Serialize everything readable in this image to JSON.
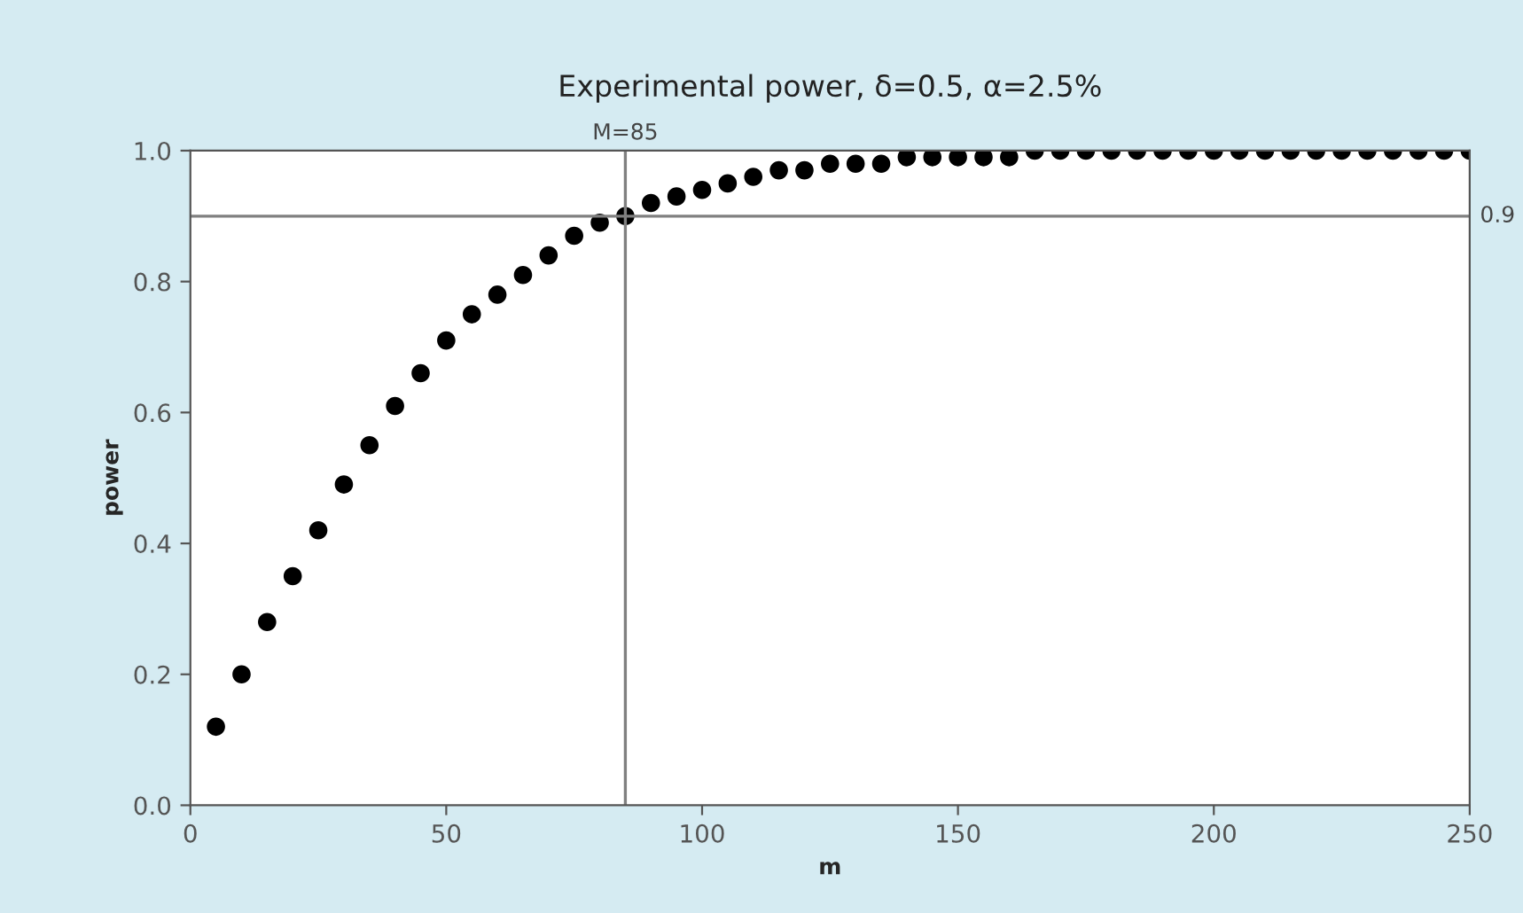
{
  "chart_data": {
    "type": "scatter",
    "title": "Experimental power, δ=0.5, α=2.5%",
    "xlabel": "m",
    "ylabel": "power",
    "x": [
      5,
      10,
      15,
      20,
      25,
      30,
      35,
      40,
      45,
      50,
      55,
      60,
      65,
      70,
      75,
      80,
      85,
      90,
      95,
      100,
      105,
      110,
      115,
      120,
      125,
      130,
      135,
      140,
      145,
      150,
      155,
      160,
      165,
      170,
      175,
      180,
      185,
      190,
      195,
      200,
      205,
      210,
      215,
      220,
      225,
      230,
      235,
      240,
      245,
      250
    ],
    "series": [
      {
        "color": "#000000",
        "values": [
          0.12,
          0.2,
          0.28,
          0.35,
          0.42,
          0.49,
          0.55,
          0.61,
          0.66,
          0.71,
          0.75,
          0.78,
          0.81,
          0.84,
          0.87,
          0.89,
          0.9,
          0.92,
          0.93,
          0.94,
          0.95,
          0.96,
          0.97,
          0.97,
          0.98,
          0.98,
          0.98,
          0.99,
          0.99,
          0.99,
          0.99,
          0.99,
          1.0,
          1.0,
          1.0,
          1.0,
          1.0,
          1.0,
          1.0,
          1.0,
          1.0,
          1.0,
          1.0,
          1.0,
          1.0,
          1.0,
          1.0,
          1.0,
          1.0,
          1.0
        ]
      }
    ],
    "marker": "circle",
    "grid": false,
    "xlim": [
      0,
      250
    ],
    "xticks": [
      0,
      50,
      100,
      150,
      200,
      250
    ],
    "ylim": [
      0,
      1
    ],
    "yticks": [
      {
        "value": 0,
        "label": "0.0"
      },
      {
        "value": 0.2,
        "label": "0.2"
      },
      {
        "value": 0.4,
        "label": "0.4"
      },
      {
        "value": 0.6,
        "label": "0.6"
      },
      {
        "value": 0.8,
        "label": "0.8"
      },
      {
        "value": 1,
        "label": "1.0"
      }
    ],
    "ref_lines": [
      {
        "axis": "x",
        "value": 85,
        "label": "M=85",
        "color": "#808080"
      },
      {
        "axis": "y",
        "value": 0.9,
        "label": "0.9",
        "color": "#808080"
      }
    ]
  }
}
